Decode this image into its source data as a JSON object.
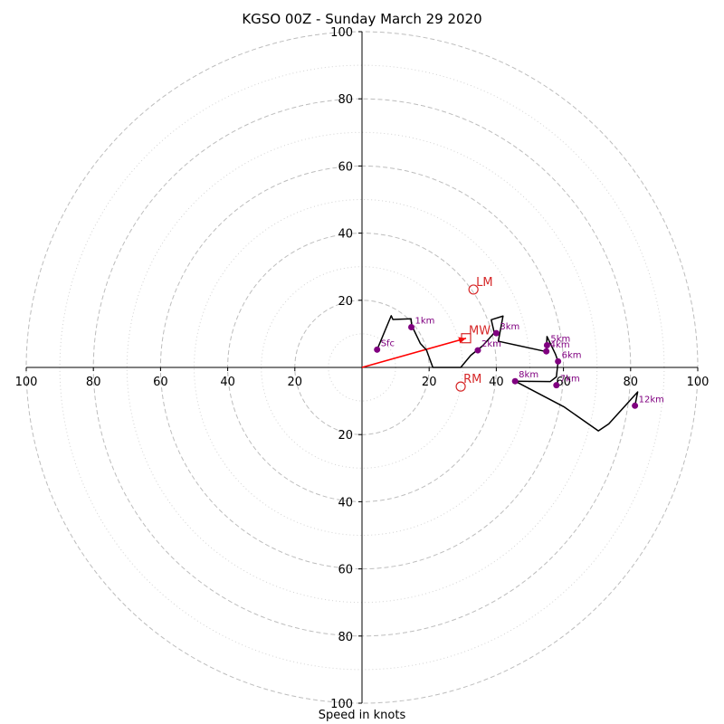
{
  "title": "KGSO 00Z - Sunday March 29 2020",
  "xlabel": "Speed in knots",
  "chart_data": {
    "type": "hodograph",
    "title": "KGSO 00Z - Sunday March 29 2020",
    "xlabel": "Speed in knots",
    "range": [
      -100,
      100
    ],
    "ring_major": [
      20,
      40,
      60,
      80,
      100
    ],
    "ring_minor": [
      10,
      30,
      50,
      70,
      90
    ],
    "tick_labels": [
      "100",
      "80",
      "60",
      "40",
      "20",
      "20",
      "40",
      "60",
      "80",
      "100"
    ],
    "v_tick_labels": [
      "100",
      "80",
      "60",
      "40",
      "20",
      "20",
      "40",
      "60",
      "80",
      "100"
    ],
    "trace": {
      "u": [
        4.5,
        8.7,
        9.2,
        14.6,
        14.8,
        17.4,
        19.2,
        21.1,
        29.4,
        32.4,
        36.0,
        39.4,
        38.5,
        42.0,
        40.6,
        54.9,
        55.1,
        57.6,
        58.4,
        57.9,
        56.1,
        45.6,
        60.1,
        70.4,
        73.5,
        82.1,
        81.3
      ],
      "v": [
        5.3,
        15.4,
        14.3,
        14.5,
        12.5,
        7.1,
        5.2,
        0.0,
        0.0,
        3.6,
        6.5,
        10.3,
        14.2,
        15.3,
        7.8,
        4.7,
        9.2,
        4.0,
        1.8,
        -2.8,
        -4.2,
        -4.1,
        -11.7,
        -18.9,
        -16.8,
        -7.3,
        -11.4
      ]
    },
    "height_markers": [
      {
        "label": "Sfc",
        "u": 4.5,
        "v": 5.3
      },
      {
        "label": "1km",
        "u": 14.7,
        "v": 12.0
      },
      {
        "label": "2km",
        "u": 34.5,
        "v": 5.1
      },
      {
        "label": "3km",
        "u": 40.0,
        "v": 10.2
      },
      {
        "label": "4km",
        "u": 54.9,
        "v": 4.8
      },
      {
        "label": "5km",
        "u": 55.1,
        "v": 6.6
      },
      {
        "label": "6km",
        "u": 58.4,
        "v": 1.8
      },
      {
        "label": "7km",
        "u": 57.9,
        "v": -5.3
      },
      {
        "label": "8km",
        "u": 45.6,
        "v": -4.1
      },
      {
        "label": "12km",
        "u": 81.3,
        "v": -11.4
      }
    ],
    "motion_markers": [
      {
        "label": "LM",
        "u": 33.2,
        "v": 23.2,
        "shape": "circle"
      },
      {
        "label": "MW",
        "u": 31.0,
        "v": 8.7,
        "shape": "square"
      },
      {
        "label": "RM",
        "u": 29.4,
        "v": -5.7,
        "shape": "circle"
      }
    ],
    "mean_wind_vector": {
      "u": 31.0,
      "v": 8.7
    },
    "colors": {
      "trace": "#000000",
      "height_markers": "#800080",
      "motion_markers": "#d62728",
      "mean_wind_vector": "#ff0000",
      "ring_major": "#bdbdbd",
      "ring_minor": "#d3d3d3"
    }
  }
}
